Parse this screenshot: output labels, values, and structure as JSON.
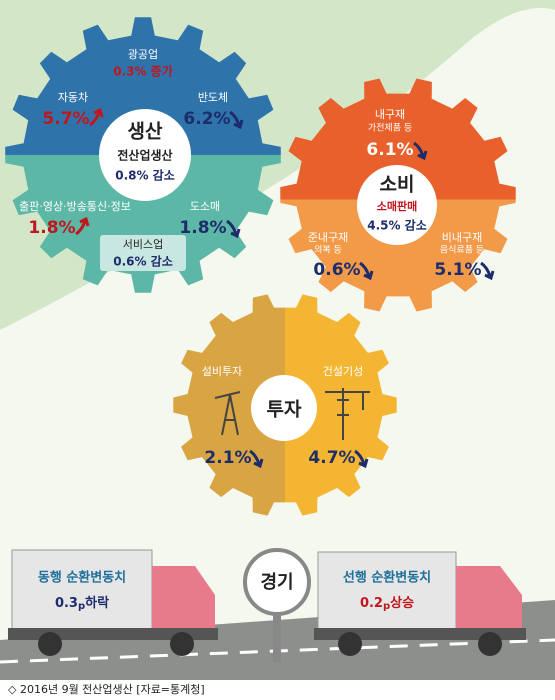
{
  "production": {
    "title": "생산",
    "subtitle": "전산업생산",
    "total": "0.8% 감소",
    "items": [
      {
        "label": "광공업",
        "value": "0.3% 증가"
      },
      {
        "label": "자동차",
        "value": "5.7%"
      },
      {
        "label": "반도체",
        "value": "6.2%"
      },
      {
        "label": "출판·영상·방송통신·정보",
        "value": "1.8%"
      },
      {
        "label": "도소매",
        "value": "1.8%"
      },
      {
        "label": "서비스업",
        "value": "0.6% 감소"
      }
    ]
  },
  "consumption": {
    "title": "소비",
    "subtitle": "소매판매",
    "total": "4.5% 감소",
    "items": [
      {
        "label": "내구재",
        "note": "가전제품 등",
        "value": "6.1%"
      },
      {
        "label": "준내구재",
        "note": "의복 등",
        "value": "0.6%"
      },
      {
        "label": "비내구재",
        "note": "음식료품 등",
        "value": "5.1%"
      }
    ]
  },
  "investment": {
    "title": "투자",
    "items": [
      {
        "label": "설비투자",
        "value": "2.1%"
      },
      {
        "label": "건설기성",
        "value": "4.7%"
      }
    ]
  },
  "economy": {
    "title": "경기",
    "coincident": {
      "label": "동행 순환변동치",
      "value": "0.3",
      "unit": "p",
      "change": "하락"
    },
    "leading": {
      "label": "선행 순환변동치",
      "value": "0.2",
      "unit": "p",
      "change": "상승"
    }
  },
  "caption": "◇ 2016년 9월 전산업생산 [자료=통계청]"
}
